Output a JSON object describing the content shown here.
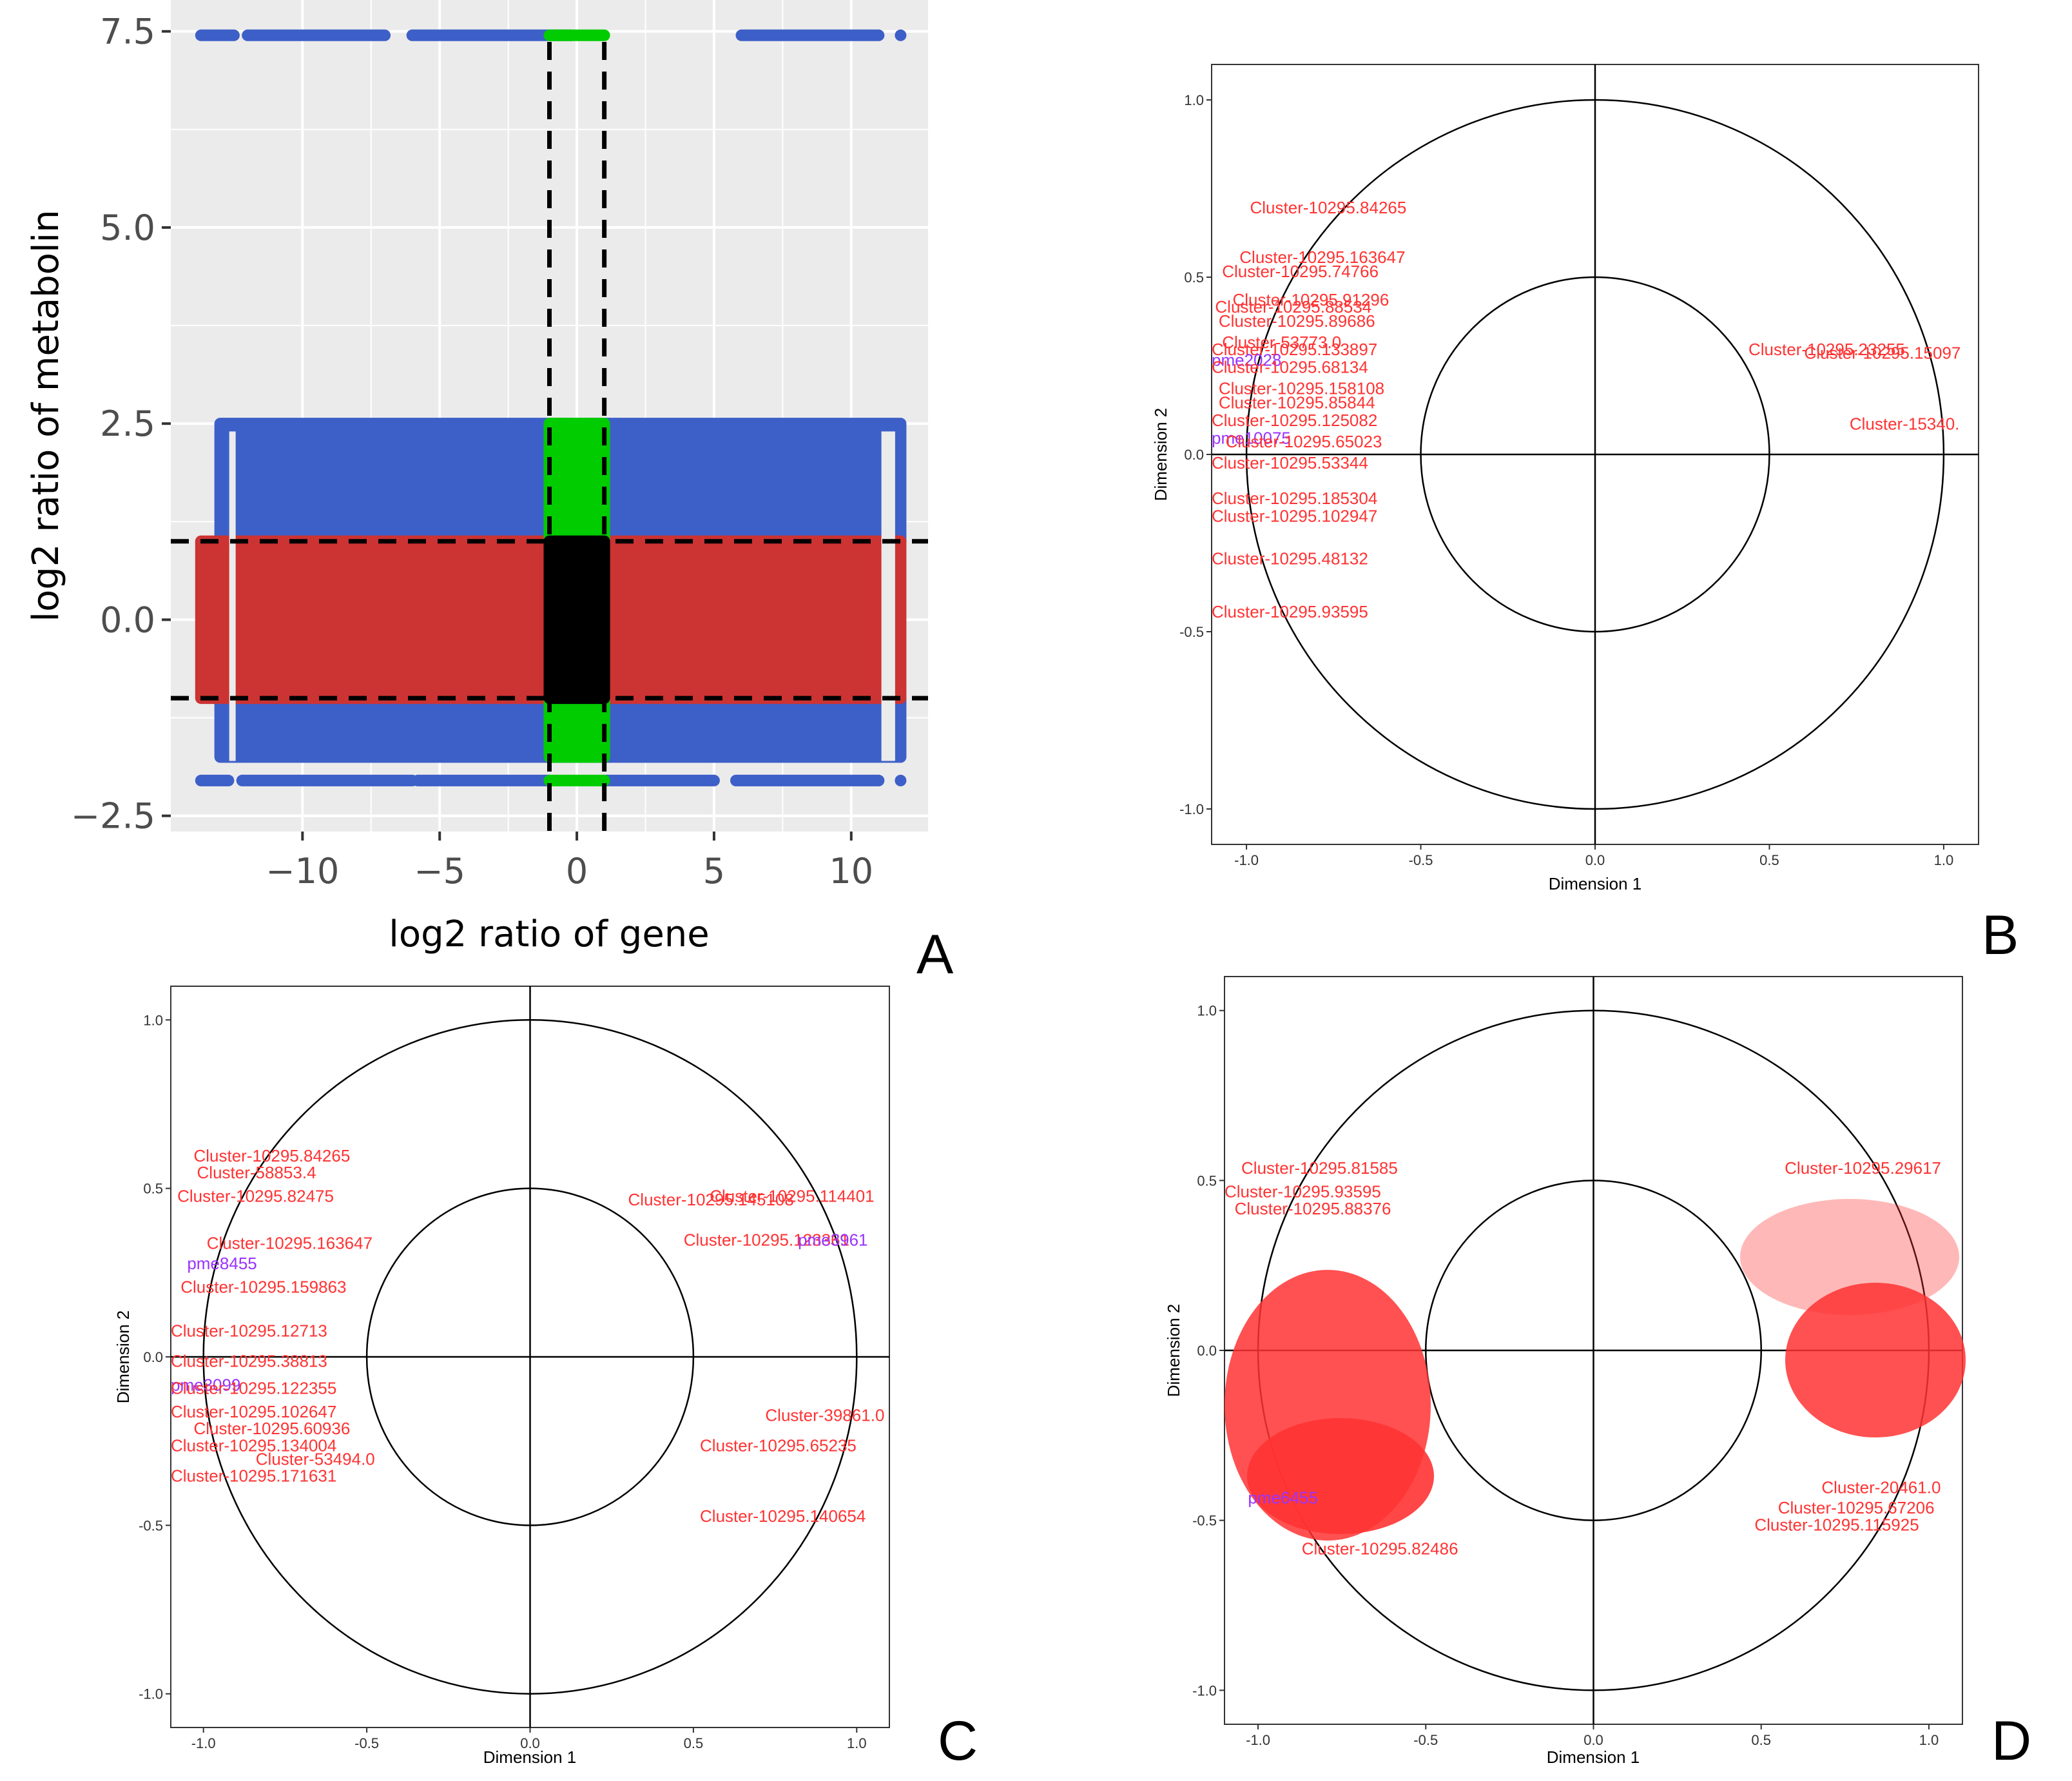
{
  "figure": {
    "panel_labels": [
      "A",
      "B",
      "C",
      "D"
    ],
    "colors": {
      "grid_bg": "#ebebeb",
      "grid_line": "#ffffff",
      "blue_point": "#3d5fc8",
      "red_point": "#cc3333",
      "green_point": "#00cc00",
      "black_point": "#000000",
      "gene_label": "#ff3333",
      "metabolite_label": "#9933ff"
    }
  },
  "chart_data": [
    {
      "id": "A",
      "type": "scatter",
      "title": "",
      "xlabel": "log2 ratio of gene",
      "ylabel": "log2 ratio of metabolin",
      "xlim": [
        -14.8,
        12.8
      ],
      "ylim": [
        -2.7,
        7.9
      ],
      "xticks": [
        -10,
        -5,
        0,
        5,
        10
      ],
      "xtick_labels": [
        "−10",
        "−5",
        "0",
        "5",
        "10"
      ],
      "yticks": [
        -2.5,
        0.0,
        2.5,
        5.0,
        7.5
      ],
      "ytick_labels": [
        "−2.5",
        "0.0",
        "2.5",
        "5.0",
        "7.5"
      ],
      "grid": true,
      "threshold_lines": {
        "x": [
          -1,
          1
        ],
        "y": [
          -1,
          1
        ]
      },
      "bands": [
        {
          "name": "blue-top",
          "color": "blue",
          "x": [
            -13.0,
            11.8
          ],
          "y": [
            1.0,
            2.5
          ]
        },
        {
          "name": "blue-bottom",
          "color": "blue",
          "x": [
            -13.0,
            11.8
          ],
          "y": [
            -1.75,
            -1.0
          ]
        },
        {
          "name": "red-center",
          "color": "red",
          "x": [
            -13.7,
            11.8
          ],
          "y": [
            -1.0,
            1.0
          ]
        },
        {
          "name": "green-top",
          "color": "green",
          "x": [
            -1.0,
            1.0
          ],
          "y": [
            1.0,
            2.5
          ]
        },
        {
          "name": "green-bottom",
          "color": "green",
          "x": [
            -1.0,
            1.0
          ],
          "y": [
            -1.75,
            -1.0
          ]
        },
        {
          "name": "black-center",
          "color": "black",
          "x": [
            -1.0,
            1.0
          ],
          "y": [
            -1.0,
            1.0
          ]
        }
      ],
      "rows": [
        {
          "y": 7.45,
          "segments": [
            [
              -13.7,
              -12.5
            ],
            [
              -12.0,
              -7.0
            ],
            [
              -6.0,
              -0.2
            ],
            [
              6.0,
              11.0
            ],
            [
              11.8,
              11.8
            ]
          ]
        },
        {
          "y": 7.45,
          "color": "green",
          "segments": [
            [
              -1.0,
              1.0
            ]
          ]
        },
        {
          "y": -2.05,
          "segments": [
            [
              -13.7,
              -12.7
            ],
            [
              -12.2,
              -6.0
            ],
            [
              -5.8,
              -1.0
            ],
            [
              1.0,
              5.0
            ],
            [
              5.8,
              11.0
            ],
            [
              11.8,
              11.8
            ]
          ]
        },
        {
          "y": -2.05,
          "color": "green",
          "segments": [
            [
              -1.0,
              1.0
            ]
          ]
        }
      ]
    },
    {
      "id": "B",
      "type": "scatter",
      "title": "",
      "xlabel": "Dimension 1",
      "ylabel": "Dimension 2",
      "xlim": [
        -1.1,
        1.1
      ],
      "ylim": [
        -1.1,
        1.1
      ],
      "xticks": [
        -1.0,
        -0.5,
        0.0,
        0.5,
        1.0
      ],
      "xtick_labels": [
        "-1.0",
        "-0.5",
        "0.0",
        "0.5",
        "1.0"
      ],
      "yticks": [
        -1.0,
        -0.5,
        0.0,
        0.5,
        1.0
      ],
      "ytick_labels": [
        "-1.0",
        "-0.5",
        "0.0",
        "0.5",
        "1.0"
      ],
      "circles": [
        0.5,
        1.0
      ],
      "labels": [
        {
          "text": "Cluster-10295.84265",
          "x": -0.99,
          "y": 0.68,
          "type": "gene"
        },
        {
          "text": "Cluster-10295.163647",
          "x": -1.02,
          "y": 0.54,
          "type": "gene"
        },
        {
          "text": "Cluster-10295.74766",
          "x": -1.07,
          "y": 0.5,
          "type": "gene"
        },
        {
          "text": "Cluster-10295.91296",
          "x": -1.04,
          "y": 0.42,
          "type": "gene"
        },
        {
          "text": "Cluster-10295.88534",
          "x": -1.09,
          "y": 0.4,
          "type": "gene"
        },
        {
          "text": "Cluster-10295.89686",
          "x": -1.08,
          "y": 0.36,
          "type": "gene"
        },
        {
          "text": "Cluster-53773.0",
          "x": -1.07,
          "y": 0.3,
          "type": "gene"
        },
        {
          "text": "Cluster-10295.133897",
          "x": -1.1,
          "y": 0.28,
          "type": "gene"
        },
        {
          "text": "pme2028",
          "x": -1.1,
          "y": 0.25,
          "type": "metabolite"
        },
        {
          "text": "Cluster-10295.68134",
          "x": -1.1,
          "y": 0.23,
          "type": "gene"
        },
        {
          "text": "Cluster-10295.158108",
          "x": -1.08,
          "y": 0.17,
          "type": "gene"
        },
        {
          "text": "Cluster-10295.85844",
          "x": -1.08,
          "y": 0.13,
          "type": "gene"
        },
        {
          "text": "Cluster-10295.125082",
          "x": -1.1,
          "y": 0.08,
          "type": "gene"
        },
        {
          "text": "pme10075",
          "x": -1.1,
          "y": 0.03,
          "type": "metabolite"
        },
        {
          "text": "Cluster-10295.65023",
          "x": -1.06,
          "y": 0.02,
          "type": "gene"
        },
        {
          "text": "Cluster-10295.53344",
          "x": -1.1,
          "y": -0.04,
          "type": "gene"
        },
        {
          "text": "Cluster-10295.185304",
          "x": -1.1,
          "y": -0.14,
          "type": "gene"
        },
        {
          "text": "Cluster-10295.102947",
          "x": -1.1,
          "y": -0.19,
          "type": "gene"
        },
        {
          "text": "Cluster-10295.48132",
          "x": -1.1,
          "y": -0.31,
          "type": "gene"
        },
        {
          "text": "Cluster-10295.93595",
          "x": -1.1,
          "y": -0.46,
          "type": "gene"
        },
        {
          "text": "Cluster-10295.23255",
          "x": 0.44,
          "y": 0.28,
          "type": "gene"
        },
        {
          "text": "Cluster-10295.15097",
          "x": 0.6,
          "y": 0.27,
          "type": "gene"
        },
        {
          "text": "Cluster-15340.",
          "x": 0.73,
          "y": 0.07,
          "type": "gene"
        }
      ]
    },
    {
      "id": "C",
      "type": "scatter",
      "title": "",
      "xlabel": "Dimension 1",
      "ylabel": "Dimension 2",
      "xlim": [
        -1.1,
        1.1
      ],
      "ylim": [
        -1.1,
        1.1
      ],
      "xticks": [
        -1.0,
        -0.5,
        0.0,
        0.5,
        1.0
      ],
      "xtick_labels": [
        "-1.0",
        "-0.5",
        "0.0",
        "0.5",
        "1.0"
      ],
      "yticks": [
        -1.0,
        -0.5,
        0.0,
        0.5,
        1.0
      ],
      "ytick_labels": [
        "-1.0",
        "-0.5",
        "0.0",
        "0.5",
        "1.0"
      ],
      "circles": [
        0.5,
        1.0
      ],
      "labels": [
        {
          "text": "Cluster-10295.84265",
          "x": -1.03,
          "y": 0.58,
          "type": "gene"
        },
        {
          "text": "Cluster-58853.4",
          "x": -1.02,
          "y": 0.53,
          "type": "gene"
        },
        {
          "text": "Cluster-10295.82475",
          "x": -1.08,
          "y": 0.46,
          "type": "gene"
        },
        {
          "text": "Cluster-10295.163647",
          "x": -0.99,
          "y": 0.32,
          "type": "gene"
        },
        {
          "text": "pme8455",
          "x": -1.05,
          "y": 0.26,
          "type": "metabolite"
        },
        {
          "text": "Cluster-10295.159863",
          "x": -1.07,
          "y": 0.19,
          "type": "gene"
        },
        {
          "text": "Cluster-10295.12713",
          "x": -1.1,
          "y": 0.06,
          "type": "gene"
        },
        {
          "text": "Cluster-10295.38813",
          "x": -1.1,
          "y": -0.03,
          "type": "gene"
        },
        {
          "text": "pme3099",
          "x": -1.1,
          "y": -0.1,
          "type": "metabolite"
        },
        {
          "text": "Cluster-10295.122355",
          "x": -1.1,
          "y": -0.11,
          "type": "gene"
        },
        {
          "text": "Cluster-10295.102647",
          "x": -1.1,
          "y": -0.18,
          "type": "gene"
        },
        {
          "text": "Cluster-10295.60936",
          "x": -1.03,
          "y": -0.23,
          "type": "gene"
        },
        {
          "text": "Cluster-10295.134004",
          "x": -1.1,
          "y": -0.28,
          "type": "gene"
        },
        {
          "text": "Cluster-53494.0",
          "x": -0.84,
          "y": -0.32,
          "type": "gene"
        },
        {
          "text": "Cluster-10295.171631",
          "x": -1.1,
          "y": -0.37,
          "type": "gene"
        },
        {
          "text": "Cluster-10295.145108",
          "x": 0.3,
          "y": 0.45,
          "type": "gene"
        },
        {
          "text": "Cluster-10295.114401",
          "x": 0.55,
          "y": 0.46,
          "type": "gene"
        },
        {
          "text": "Cluster-10295.123361",
          "x": 0.47,
          "y": 0.33,
          "type": "gene"
        },
        {
          "text": "pme3961",
          "x": 0.82,
          "y": 0.33,
          "type": "metabolite"
        },
        {
          "text": "Cluster-10295.65235",
          "x": 0.52,
          "y": -0.28,
          "type": "gene"
        },
        {
          "text": "Cluster-39861.0",
          "x": 0.72,
          "y": -0.19,
          "type": "gene"
        },
        {
          "text": "Cluster-10295.140654",
          "x": 0.52,
          "y": -0.49,
          "type": "gene"
        }
      ]
    },
    {
      "id": "D",
      "type": "scatter",
      "title": "",
      "xlabel": "Dimension 1",
      "ylabel": "Dimension 2",
      "xlim": [
        -1.1,
        1.1
      ],
      "ylim": [
        -1.1,
        1.1
      ],
      "xticks": [
        -1.0,
        -0.5,
        0.0,
        0.5,
        1.0
      ],
      "xtick_labels": [
        "-1.0",
        "-0.5",
        "0.0",
        "0.5",
        "1.0"
      ],
      "yticks": [
        -1.0,
        -0.5,
        0.0,
        0.5,
        1.0
      ],
      "ytick_labels": [
        "-1.0",
        "-0.5",
        "0.0",
        "0.5",
        "1.0"
      ],
      "circles": [
        0.5,
        1.0
      ],
      "labels": [
        {
          "text": "Cluster-10295.81585",
          "x": -1.05,
          "y": 0.52,
          "type": "gene"
        },
        {
          "text": "Cluster-10295.93595",
          "x": -1.1,
          "y": 0.45,
          "type": "gene"
        },
        {
          "text": "Cluster-10295.88376",
          "x": -1.07,
          "y": 0.4,
          "type": "gene"
        },
        {
          "text": "Cluster-10295.82486",
          "x": -0.87,
          "y": -0.6,
          "type": "gene"
        },
        {
          "text": "pme6455",
          "x": -1.03,
          "y": -0.45,
          "type": "metabolite"
        },
        {
          "text": "Cluster-10295.29617",
          "x": 0.57,
          "y": 0.52,
          "type": "gene"
        },
        {
          "text": "Cluster-10295.67206",
          "x": 0.55,
          "y": -0.48,
          "type": "gene"
        },
        {
          "text": "Cluster-20461.0",
          "x": 0.68,
          "y": -0.42,
          "type": "gene"
        },
        {
          "text": "Cluster-10295.115925",
          "x": 0.48,
          "y": -0.53,
          "type": "gene"
        }
      ]
    }
  ]
}
